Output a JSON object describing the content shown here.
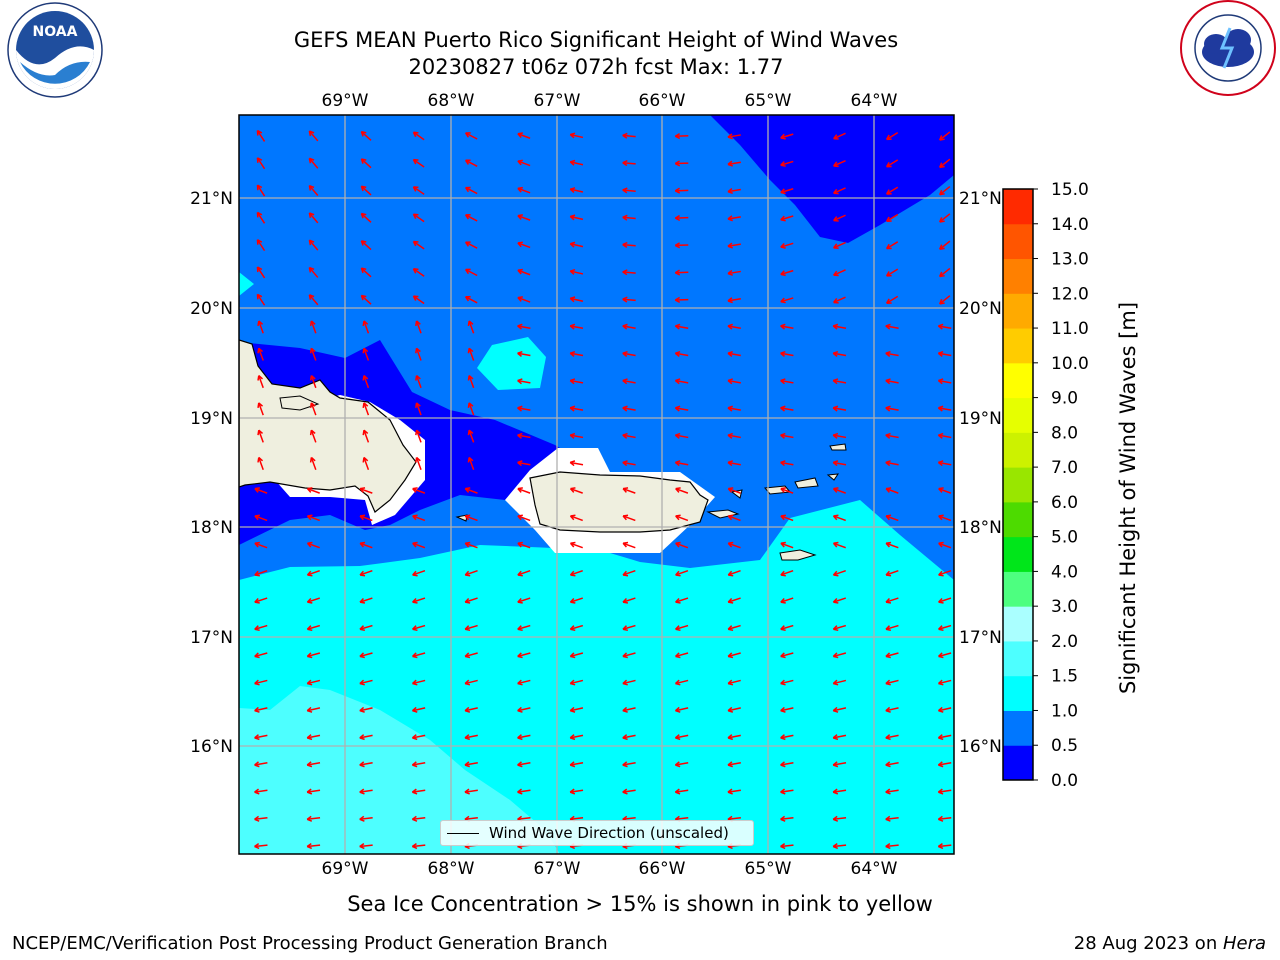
{
  "header": {
    "title_line1": "GEFS MEAN Puerto Rico Significant Height of Wind Waves",
    "title_line2": "20230827 t06z 072h fcst   Max: 1.77"
  },
  "logos": {
    "noaa_icon": "noaa-logo-icon",
    "nws_icon": "national-weather-service-logo-icon",
    "noaa_text": "NOAA",
    "noaa_ring_text": "NATIONAL OCEANIC AND ATMOSPHERIC ADMINISTRATION",
    "noaa_ring_bottom": "U.S. DEPARTMENT OF COMMERCE",
    "nws_ring_text": "NATIONAL WEATHER SERVICE"
  },
  "map": {
    "lon_labels": [
      "69°W",
      "68°W",
      "67°W",
      "66°W",
      "65°W",
      "64°W"
    ],
    "lat_labels": [
      "21°N",
      "20°N",
      "19°N",
      "18°N",
      "17°N",
      "16°N"
    ],
    "legend_label": "Wind Wave Direction (unscaled)",
    "colors": {
      "level_0_0p5": "#0000ff",
      "level_0p5_1": "#0077ff",
      "level_1_1p5": "#00ffff",
      "level_1p5_2": "#4dffff",
      "land": "#efefdf",
      "arrows": "#ff0000"
    }
  },
  "colorbar": {
    "title": "Significant Height of Wind Waves [m]",
    "levels": [
      "0.0",
      "0.5",
      "1.0",
      "1.5",
      "2.0",
      "3.0",
      "4.0",
      "5.0",
      "6.0",
      "7.0",
      "8.0",
      "9.0",
      "10.0",
      "11.0",
      "12.0",
      "13.0",
      "14.0",
      "15.0"
    ],
    "colors": [
      "#0000ff",
      "#0077ff",
      "#00ffff",
      "#4dffff",
      "#aaffff",
      "#4dff80",
      "#00e61a",
      "#4ddb00",
      "#99e600",
      "#ccf200",
      "#e6ff00",
      "#ffff00",
      "#ffcc00",
      "#ffaa00",
      "#ff8000",
      "#ff5500",
      "#ff2a00"
    ]
  },
  "notes": {
    "ice": "Sea Ice Concentration > 15% is shown in pink to yellow",
    "footer_left": "NCEP/EMC/Verification Post Processing Product Generation Branch",
    "footer_right_date": "28 Aug 2023 on ",
    "footer_right_host": "Hera"
  }
}
